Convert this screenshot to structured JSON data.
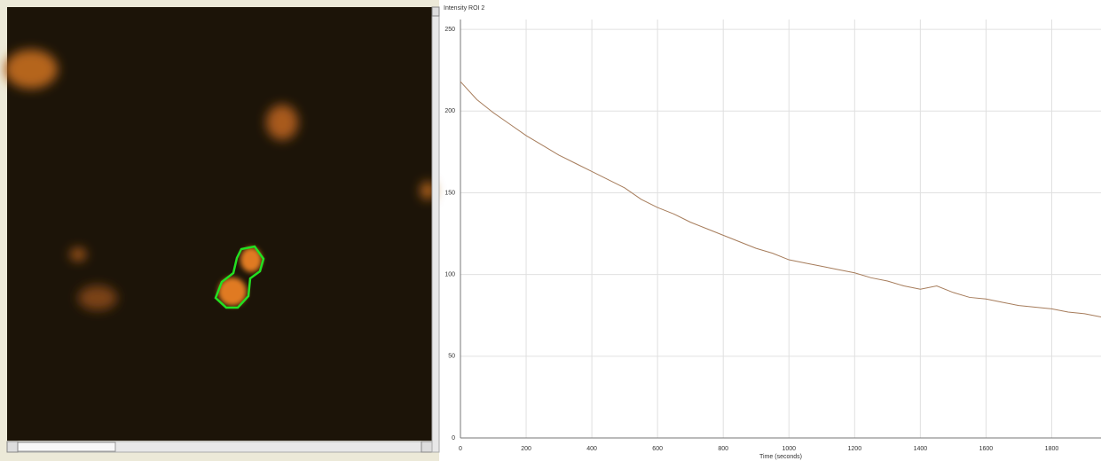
{
  "chart_data": {
    "type": "line",
    "title": "Intensity ROI 2",
    "x_label": "Time (seconds)",
    "x": [
      0,
      50,
      100,
      150,
      200,
      250,
      300,
      350,
      400,
      450,
      500,
      550,
      600,
      650,
      700,
      750,
      800,
      850,
      900,
      950,
      1000,
      1050,
      1100,
      1150,
      1200,
      1250,
      1300,
      1350,
      1400,
      1450,
      1500,
      1550,
      1600,
      1650,
      1700,
      1750,
      1800,
      1850,
      1900,
      1950
    ],
    "series": [
      {
        "color": "#a67c5b",
        "values": [
          218,
          207,
          199,
          192,
          185,
          179,
          173,
          168,
          163,
          158,
          153,
          146,
          141,
          137,
          132,
          128,
          124,
          120,
          116,
          113,
          109,
          107,
          105,
          103,
          101,
          98,
          96,
          93,
          91,
          93,
          89,
          86,
          85,
          83,
          81,
          80,
          79,
          77,
          76,
          74
        ]
      }
    ],
    "xlim": [
      0,
      1950
    ],
    "ylim": [
      0,
      256
    ],
    "xticks": [
      0,
      200,
      400,
      600,
      800,
      1000,
      1200,
      1400,
      1600,
      1800
    ],
    "yticks": [
      0,
      50,
      100,
      150,
      200,
      250
    ],
    "grid": true
  }
}
